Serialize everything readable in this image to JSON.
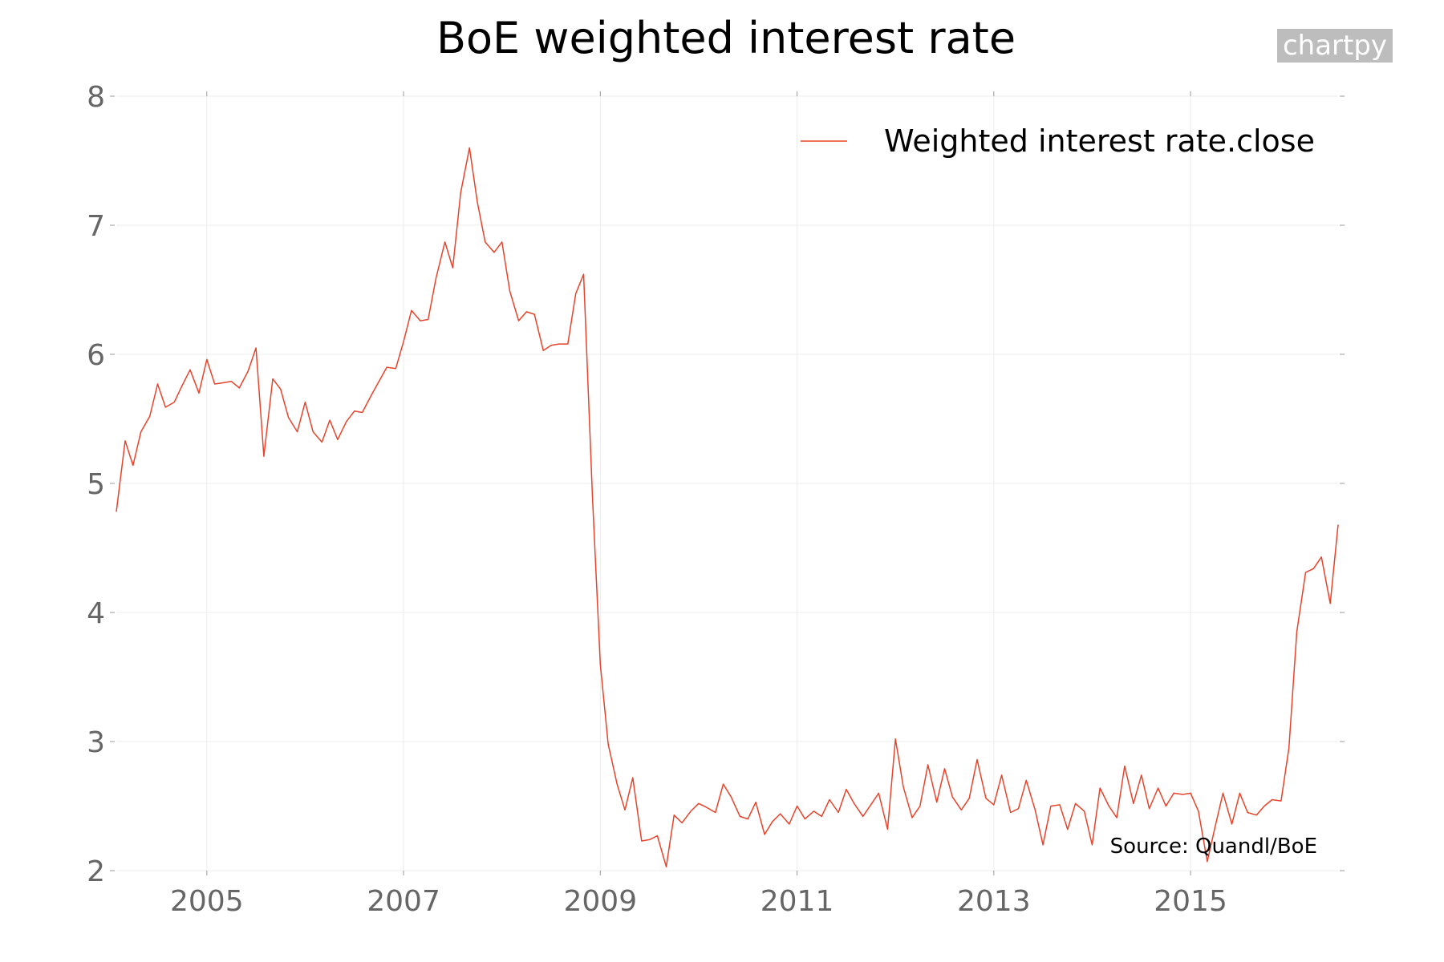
{
  "chart_data": {
    "type": "line",
    "title": "BoE weighted interest rate",
    "xlabel": "",
    "ylabel": "",
    "ylim": [
      2,
      8
    ],
    "xlim": [
      2004.08,
      2016.5
    ],
    "yticks": [
      2,
      3,
      4,
      5,
      6,
      7,
      8
    ],
    "xticks": [
      "2005",
      "2007",
      "2009",
      "2011",
      "2013",
      "2015"
    ],
    "grid": true,
    "legend_position": "top-right",
    "series": [
      {
        "name": "Weighted interest rate.close",
        "color": "#e8432b",
        "x": [
          2004.08,
          2004.17,
          2004.25,
          2004.33,
          2004.42,
          2004.5,
          2004.58,
          2004.67,
          2004.75,
          2004.83,
          2004.92,
          2005.0,
          2005.08,
          2005.17,
          2005.25,
          2005.33,
          2005.42,
          2005.5,
          2005.58,
          2005.67,
          2005.75,
          2005.83,
          2005.92,
          2006.0,
          2006.08,
          2006.17,
          2006.25,
          2006.33,
          2006.42,
          2006.5,
          2006.58,
          2006.67,
          2006.75,
          2006.83,
          2006.92,
          2007.0,
          2007.08,
          2007.17,
          2007.25,
          2007.33,
          2007.42,
          2007.5,
          2007.58,
          2007.67,
          2007.75,
          2007.83,
          2007.92,
          2008.0,
          2008.08,
          2008.17,
          2008.25,
          2008.33,
          2008.42,
          2008.5,
          2008.58,
          2008.67,
          2008.75,
          2008.83,
          2008.92,
          2009.0,
          2009.08,
          2009.17,
          2009.25,
          2009.33,
          2009.42,
          2009.5,
          2009.58,
          2009.67,
          2009.75,
          2009.83,
          2009.92,
          2010.0,
          2010.08,
          2010.17,
          2010.25,
          2010.33,
          2010.42,
          2010.5,
          2010.58,
          2010.67,
          2010.75,
          2010.83,
          2010.92,
          2011.0,
          2011.08,
          2011.17,
          2011.25,
          2011.33,
          2011.42,
          2011.5,
          2011.58,
          2011.67,
          2011.75,
          2011.83,
          2011.92,
          2012.0,
          2012.08,
          2012.17,
          2012.25,
          2012.33,
          2012.42,
          2012.5,
          2012.58,
          2012.67,
          2012.75,
          2012.83,
          2012.92,
          2013.0,
          2013.08,
          2013.17,
          2013.25,
          2013.33,
          2013.42,
          2013.5,
          2013.58,
          2013.67,
          2013.75,
          2013.83,
          2013.92,
          2014.0,
          2014.08,
          2014.17,
          2014.25,
          2014.33,
          2014.42,
          2014.5,
          2014.58,
          2014.67,
          2014.75,
          2014.83,
          2014.92,
          2015.0,
          2015.08,
          2015.17,
          2015.25,
          2015.33,
          2015.42,
          2015.5,
          2015.58,
          2015.67,
          2015.75,
          2015.83,
          2015.92,
          2016.0,
          2016.08,
          2016.17,
          2016.25,
          2016.33,
          2016.42,
          2016.5
        ],
        "y": [
          4.78,
          5.33,
          5.14,
          5.4,
          5.52,
          5.77,
          5.59,
          5.63,
          5.76,
          5.88,
          5.7,
          5.96,
          5.77,
          5.78,
          5.79,
          5.74,
          5.87,
          6.05,
          5.21,
          5.81,
          5.73,
          5.51,
          5.4,
          5.63,
          5.4,
          5.32,
          5.49,
          5.34,
          5.48,
          5.56,
          5.55,
          5.68,
          5.79,
          5.9,
          5.89,
          6.1,
          6.34,
          6.26,
          6.27,
          6.59,
          6.87,
          6.67,
          7.25,
          7.6,
          7.18,
          6.87,
          6.79,
          6.87,
          6.49,
          6.26,
          6.33,
          6.31,
          6.03,
          6.07,
          6.08,
          6.08,
          6.47,
          6.62,
          4.9,
          3.6,
          2.98,
          2.67,
          2.47,
          2.72,
          2.23,
          2.24,
          2.27,
          2.03,
          2.43,
          2.37,
          2.46,
          2.52,
          2.49,
          2.45,
          2.67,
          2.57,
          2.42,
          2.4,
          2.53,
          2.28,
          2.38,
          2.44,
          2.36,
          2.5,
          2.4,
          2.46,
          2.42,
          2.55,
          2.45,
          2.63,
          2.52,
          2.42,
          2.51,
          2.6,
          2.32,
          3.02,
          2.65,
          2.41,
          2.5,
          2.82,
          2.53,
          2.79,
          2.57,
          2.47,
          2.56,
          2.86,
          2.56,
          2.51,
          2.74,
          2.45,
          2.48,
          2.7,
          2.47,
          2.2,
          2.5,
          2.51,
          2.32,
          2.52,
          2.46,
          2.2,
          2.64,
          2.5,
          2.41,
          2.81,
          2.52,
          2.74,
          2.48,
          2.64,
          2.5,
          2.6,
          2.59,
          2.6,
          2.46,
          2.07,
          2.34,
          2.6,
          2.36,
          2.6,
          2.45,
          2.43,
          2.5,
          2.55,
          2.54,
          2.95,
          3.85,
          4.31,
          4.34,
          4.43,
          4.07,
          4.68
        ]
      }
    ],
    "source_note": "Source: Quandl/BoE",
    "watermark": "chartpy",
    "watermark_bg": "#bdbdbd"
  }
}
